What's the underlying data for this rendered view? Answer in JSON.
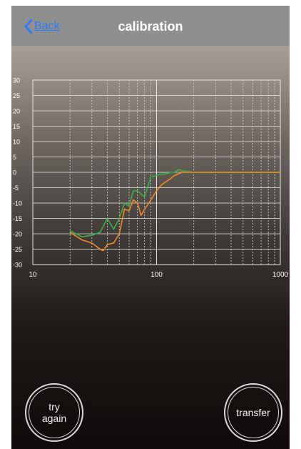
{
  "nav": {
    "back_label": "Back",
    "title": "calibration"
  },
  "chart_data": {
    "type": "line",
    "x_scale": "log",
    "xlim": [
      10,
      1000
    ],
    "ylim": [
      -30,
      30
    ],
    "x_ticks": [
      "10",
      "100",
      "1000"
    ],
    "y_ticks": [
      "30",
      "25",
      "20",
      "15",
      "10",
      "5",
      "0",
      "-5",
      "-10",
      "-15",
      "-20",
      "-25",
      "-30"
    ],
    "grid": true,
    "series": [
      {
        "color": "#3fae49",
        "x": [
          20,
          25,
          30,
          35,
          40,
          45,
          50,
          55,
          60,
          65,
          70,
          80,
          90,
          100,
          110,
          120,
          130,
          140,
          150,
          160,
          200,
          300,
          500,
          1000
        ],
        "y": [
          -19,
          -21,
          -20.5,
          -19.5,
          -15,
          -18.5,
          -15,
          -10,
          -11,
          -6,
          -6,
          -8,
          -1.5,
          -1,
          -0.5,
          -0.5,
          0,
          0,
          1,
          0.5,
          0,
          0,
          0,
          0
        ]
      },
      {
        "color": "#f08a2a",
        "x": [
          20,
          25,
          30,
          35,
          37,
          40,
          45,
          50,
          55,
          60,
          65,
          70,
          75,
          80,
          90,
          100,
          110,
          120,
          130,
          140,
          150,
          160,
          200,
          300,
          500,
          1000
        ],
        "y": [
          -19.5,
          -22,
          -23,
          -25,
          -25.5,
          -23.5,
          -23,
          -20,
          -12,
          -12.5,
          -9,
          -10,
          -14,
          -12,
          -9,
          -6,
          -4,
          -3,
          -2,
          -1,
          -0.5,
          0,
          0,
          0,
          0,
          0
        ]
      }
    ]
  },
  "buttons": {
    "try_again_label": "try\nagain",
    "transfer_label": "transfer"
  },
  "colors": {
    "back_link": "#2f7bf5",
    "navbar": "#8f8f8f",
    "green_series": "#3fae49",
    "orange_series": "#f08a2a"
  },
  "icons": {
    "back": "chevron-left-icon"
  }
}
